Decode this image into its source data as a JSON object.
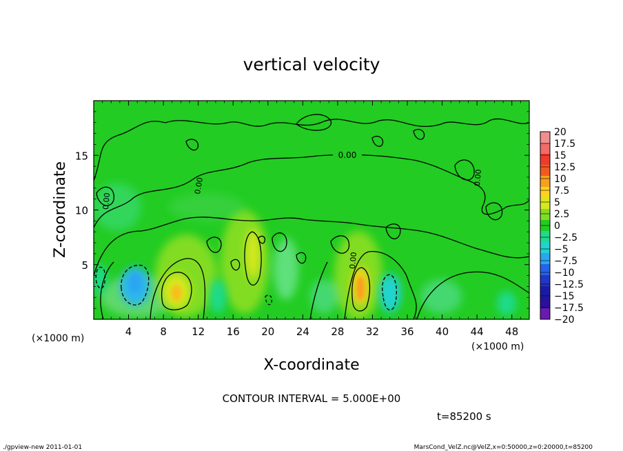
{
  "chart_data": {
    "type": "heatmap",
    "title": "vertical velocity",
    "xlabel": "X-coordinate",
    "ylabel": "Z-coordinate",
    "x_unit_left": "(×1000 m)",
    "x_unit_right": "(×1000 m)",
    "xlim": [
      0,
      50
    ],
    "ylim": [
      0,
      20
    ],
    "x_ticks": [
      4,
      8,
      12,
      16,
      20,
      24,
      28,
      32,
      36,
      40,
      44,
      48
    ],
    "x_tick_labels": [
      "4",
      "8",
      "12",
      "16",
      "20",
      "24",
      "28",
      "32",
      "36",
      "40",
      "44",
      "48"
    ],
    "y_ticks": [
      5,
      10,
      15
    ],
    "y_tick_labels": [
      "5",
      "10",
      "15"
    ],
    "colorbar": {
      "levels": [
        20,
        17.5,
        15,
        12.5,
        10,
        7.5,
        5,
        2.5,
        0,
        -2.5,
        -5,
        -7.5,
        -10,
        -12.5,
        -15,
        -17.5,
        -20
      ],
      "labels": [
        "20",
        "17.5",
        "15",
        "12.5",
        "10",
        "7.5",
        "5",
        "2.5",
        "0",
        "−2.5",
        "−5",
        "−7.5",
        "−10",
        "−12.5",
        "−15",
        "−17.5",
        "−20"
      ],
      "colors": [
        "#f08e8e",
        "#f26a6a",
        "#ef3b2c",
        "#f45a1e",
        "#f7a01e",
        "#ffd21f",
        "#d7e81e",
        "#82dd22",
        "#22cc22",
        "#1fdb8c",
        "#22d3d0",
        "#2aa6f0",
        "#2563e8",
        "#1f36c8",
        "#1a1aa8",
        "#2a10a0",
        "#6a1ab0"
      ]
    },
    "contour_label": "0.00",
    "features": [
      {
        "type": "updraft",
        "x": 9.5,
        "z": 2.5,
        "w": 6
      },
      {
        "type": "updraft",
        "x": 18.2,
        "z": 5.5,
        "w": 4
      },
      {
        "type": "updraft",
        "x": 30.5,
        "z": 2.5,
        "w": 10
      },
      {
        "type": "downdraft",
        "x": 4.8,
        "z": 3.0,
        "w": -7
      },
      {
        "type": "downdraft",
        "x": 33.5,
        "z": 2.3,
        "w": -6
      },
      {
        "type": "downdraft",
        "x": 0.8,
        "z": 3.3,
        "w": -3
      }
    ]
  },
  "annotations": {
    "contour_interval": "CONTOUR INTERVAL = 5.000E+00",
    "time": "t=85200 s",
    "footer_left": "./gpview-new   2011-01-01",
    "footer_right": "MarsCond_VelZ.nc@VelZ,x=0:50000,z=0:20000,t=85200"
  }
}
